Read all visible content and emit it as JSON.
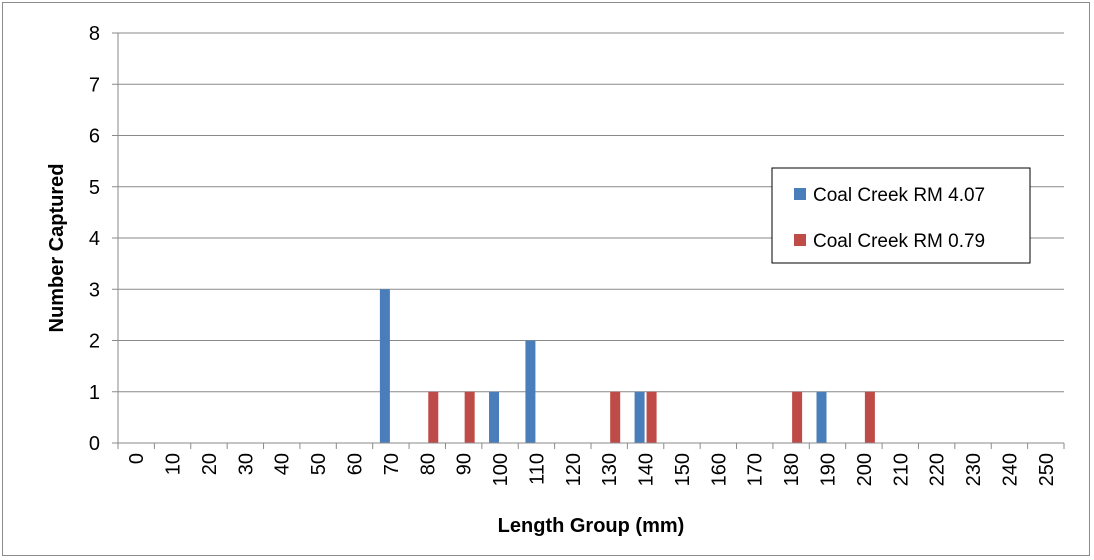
{
  "chart_data": {
    "type": "bar",
    "title": "",
    "xlabel": "Length Group (mm)",
    "ylabel": "Number Captured",
    "ylim": [
      0,
      8
    ],
    "yticks": [
      "0",
      "1",
      "2",
      "3",
      "4",
      "5",
      "6",
      "7",
      "8"
    ],
    "categories": [
      "0",
      "10",
      "20",
      "30",
      "40",
      "50",
      "60",
      "70",
      "80",
      "90",
      "100",
      "110",
      "120",
      "130",
      "140",
      "150",
      "160",
      "170",
      "180",
      "190",
      "200",
      "210",
      "220",
      "230",
      "240",
      "250"
    ],
    "series": [
      {
        "name": "Coal Creek RM 4.07",
        "color": "#4a7ebb",
        "values": [
          0,
          0,
          0,
          0,
          0,
          0,
          0,
          3,
          0,
          0,
          1,
          2,
          0,
          0,
          1,
          0,
          0,
          0,
          0,
          1,
          0,
          0,
          0,
          0,
          0,
          0
        ]
      },
      {
        "name": "Coal Creek RM 0.79",
        "color": "#be4b48",
        "values": [
          0,
          0,
          0,
          0,
          0,
          0,
          0,
          0,
          1,
          1,
          0,
          0,
          0,
          1,
          1,
          0,
          0,
          0,
          1,
          0,
          1,
          0,
          0,
          0,
          0,
          0
        ]
      }
    ],
    "grid": true,
    "legend_position": "right"
  }
}
